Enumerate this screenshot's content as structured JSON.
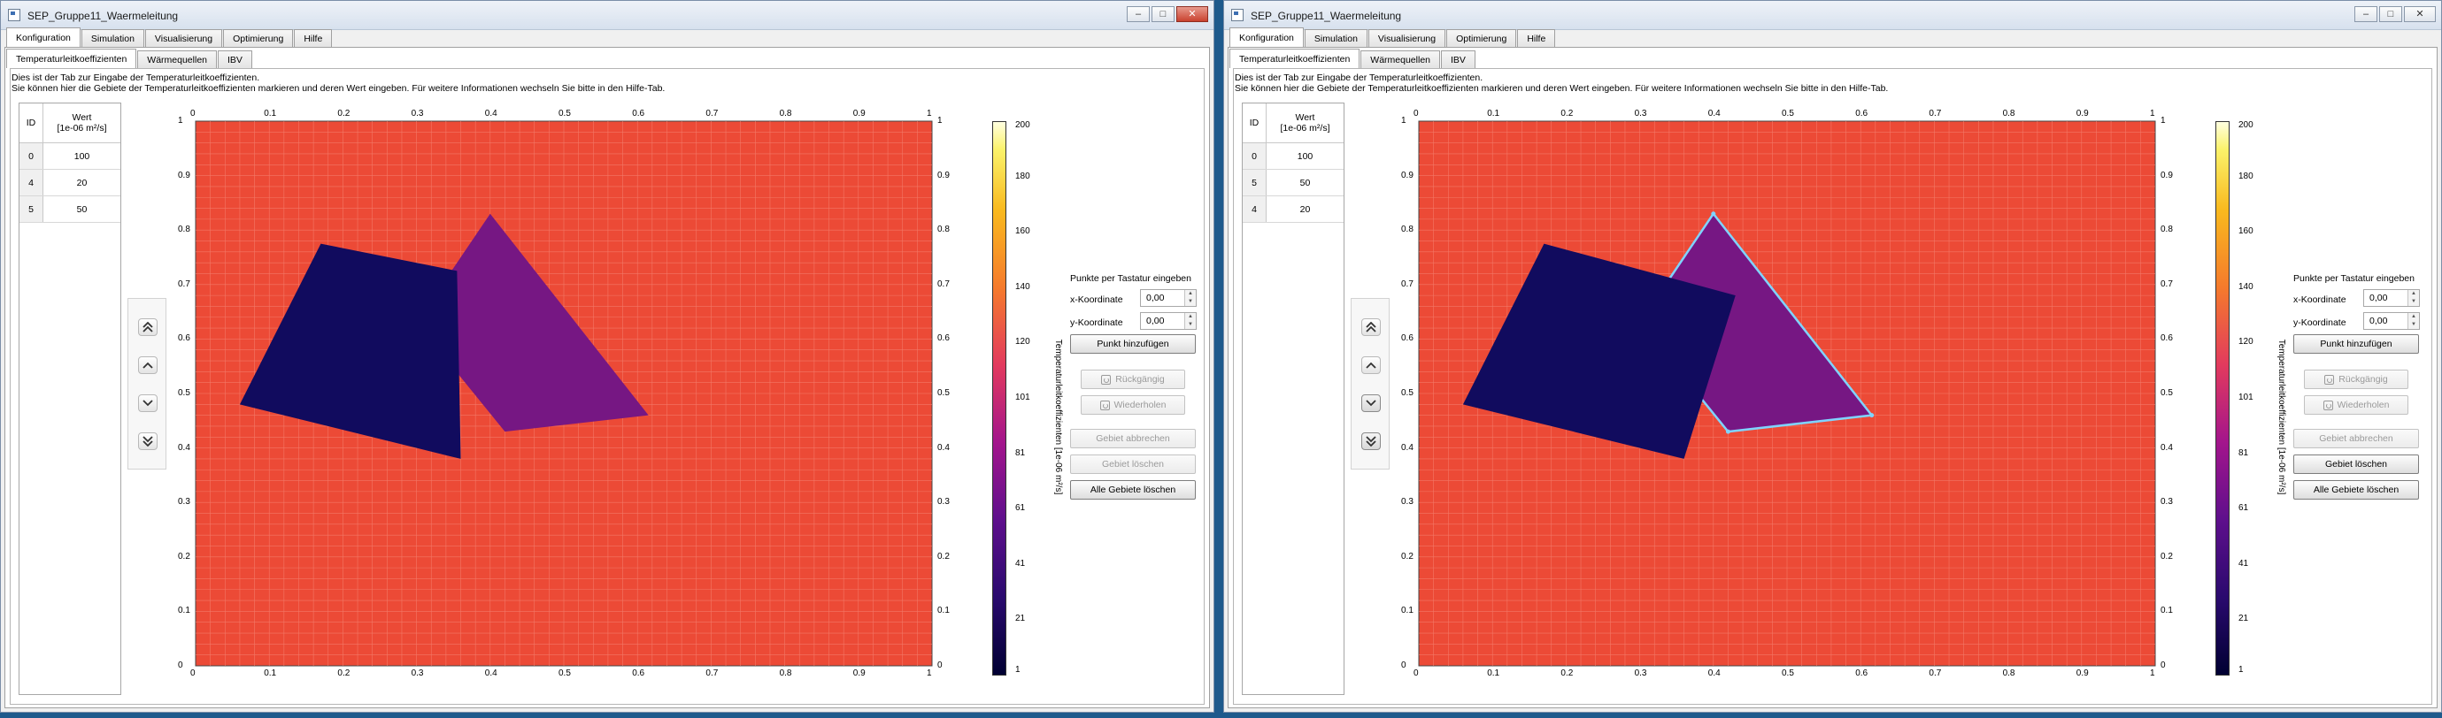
{
  "windows": [
    {
      "title": "SEP_Gruppe11_Waermeleitung",
      "window_buttons": [
        "–",
        "□",
        "✕"
      ],
      "close_active": true,
      "main_tabs": [
        "Konfiguration",
        "Simulation",
        "Visualisierung",
        "Optimierung",
        "Hilfe"
      ],
      "active_main_tab": "Konfiguration",
      "sub_tabs": [
        "Temperaturleitkoeffizienten",
        "Wärmequellen",
        "IBV"
      ],
      "active_sub_tab": "Temperaturleitkoeffizienten",
      "intro_line1": "Dies ist der Tab zur Eingabe der Temperaturleitkoeffizienten.",
      "intro_line2": "Sie können hier die Gebiete der Temperaturleitkoeffizienten markieren und deren Wert eingeben. Für weitere Informationen wechseln Sie bitte in den Hilfe-Tab.",
      "table": {
        "col_id": "ID",
        "col_wert_line1": "Wert",
        "col_wert_line2": "[1e-06 m²/s]",
        "rows": [
          {
            "id": "0",
            "wert": "100"
          },
          {
            "id": "4",
            "wert": "20"
          },
          {
            "id": "5",
            "wert": "50"
          }
        ]
      },
      "plot": {
        "ticks": [
          "0",
          "0.1",
          "0.2",
          "0.3",
          "0.4",
          "0.5",
          "0.6",
          "0.7",
          "0.8",
          "0.9",
          "1"
        ],
        "background_color": "#ec4a36",
        "regions": [
          {
            "name": "square",
            "color": "#110b5e",
            "points": [
              [
                0.17,
                0.775
              ],
              [
                0.355,
                0.725
              ],
              [
                0.36,
                0.38
              ],
              [
                0.06,
                0.48
              ]
            ],
            "selected": false
          },
          {
            "name": "triangle",
            "color": "#761783",
            "points": [
              [
                0.4,
                0.83
              ],
              [
                0.615,
                0.46
              ],
              [
                0.42,
                0.43
              ],
              [
                0.3,
                0.63
              ]
            ],
            "selected": false
          }
        ],
        "draw_order": [
          "triangle",
          "square"
        ]
      },
      "colorbar": {
        "ticks": [
          "200",
          "180",
          "160",
          "140",
          "120",
          "101",
          "81",
          "61",
          "41",
          "21",
          "1"
        ],
        "label": "Temperaturleitkoeffizienten [1e-06 m²/s]"
      },
      "keyboard": {
        "title": "Punkte per Tastatur eingeben",
        "x_label": "x-Koordinate",
        "x_value": "0,00",
        "y_label": "y-Koordinate",
        "y_value": "0,00"
      },
      "buttons": {
        "add_point": "Punkt hinzufügen",
        "undo": "Rückgängig",
        "redo": "Wiederholen",
        "cancel_area": "Gebiet abbrechen",
        "delete_area": "Gebiet löschen",
        "delete_all": "Alle Gebiete löschen"
      },
      "delete_area_enabled": false
    },
    {
      "title": "SEP_Gruppe11_Waermeleitung",
      "window_buttons": [
        "–",
        "□",
        "✕"
      ],
      "close_active": false,
      "main_tabs": [
        "Konfiguration",
        "Simulation",
        "Visualisierung",
        "Optimierung",
        "Hilfe"
      ],
      "active_main_tab": "Konfiguration",
      "sub_tabs": [
        "Temperaturleitkoeffizienten",
        "Wärmequellen",
        "IBV"
      ],
      "active_sub_tab": "Temperaturleitkoeffizienten",
      "intro_line1": "Dies ist der Tab zur Eingabe der Temperaturleitkoeffizienten.",
      "intro_line2": "Sie können hier die Gebiete der Temperaturleitkoeffizienten markieren und deren Wert eingeben. Für weitere Informationen wechseln Sie bitte in den Hilfe-Tab.",
      "table": {
        "col_id": "ID",
        "col_wert_line1": "Wert",
        "col_wert_line2": "[1e-06 m²/s]",
        "rows": [
          {
            "id": "0",
            "wert": "100"
          },
          {
            "id": "5",
            "wert": "50"
          },
          {
            "id": "4",
            "wert": "20"
          }
        ]
      },
      "plot": {
        "ticks": [
          "0",
          "0.1",
          "0.2",
          "0.3",
          "0.4",
          "0.5",
          "0.6",
          "0.7",
          "0.8",
          "0.9",
          "1"
        ],
        "background_color": "#ec4a36",
        "regions": [
          {
            "name": "square",
            "color": "#110b5e",
            "points": [
              [
                0.17,
                0.775
              ],
              [
                0.43,
                0.68
              ],
              [
                0.36,
                0.38
              ],
              [
                0.06,
                0.48
              ]
            ],
            "selected": false
          },
          {
            "name": "triangle",
            "color": "#761783",
            "points": [
              [
                0.4,
                0.83
              ],
              [
                0.615,
                0.46
              ],
              [
                0.42,
                0.43
              ],
              [
                0.3,
                0.63
              ]
            ],
            "selected": true
          }
        ],
        "draw_order": [
          "triangle",
          "square"
        ]
      },
      "colorbar": {
        "ticks": [
          "200",
          "180",
          "160",
          "140",
          "120",
          "101",
          "81",
          "61",
          "41",
          "21",
          "1"
        ],
        "label": "Temperaturleitkoeffizienten [1e-06 m²/s]"
      },
      "keyboard": {
        "title": "Punkte per Tastatur eingeben",
        "x_label": "x-Koordinate",
        "x_value": "0,00",
        "y_label": "y-Koordinate",
        "y_value": "0,00"
      },
      "buttons": {
        "add_point": "Punkt hinzufügen",
        "undo": "Rückgängig",
        "redo": "Wiederholen",
        "cancel_area": "Gebiet abbrechen",
        "delete_area": "Gebiet löschen",
        "delete_all": "Alle Gebiete löschen"
      },
      "delete_area_enabled": true
    }
  ],
  "colors": {
    "selection_outline": "#7fd4ff",
    "grid": "#f37867"
  }
}
